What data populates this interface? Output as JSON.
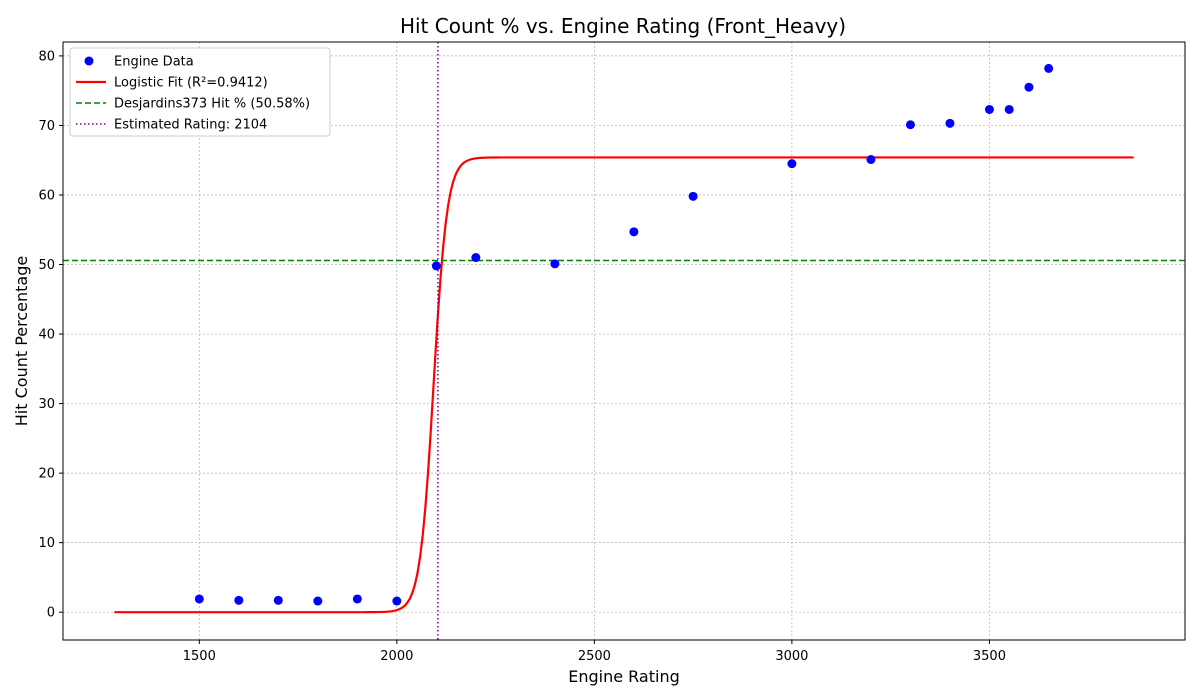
{
  "chart_data": {
    "type": "scatter",
    "title": "Hit Count % vs. Engine Rating (Front_Heavy)",
    "xlabel": "Engine Rating",
    "ylabel": "Hit Count Percentage",
    "xlim": [
      1155,
      3995
    ],
    "ylim": [
      -4,
      82
    ],
    "xticks": [
      1500,
      2000,
      2500,
      3000,
      3500
    ],
    "yticks": [
      0,
      10,
      20,
      30,
      40,
      50,
      60,
      70,
      80
    ],
    "grid": true,
    "legend_position": "top-left",
    "series": [
      {
        "name": "Engine Data",
        "kind": "scatter",
        "color": "#0000ff",
        "points": [
          [
            1500,
            1.9
          ],
          [
            1600,
            1.7
          ],
          [
            1700,
            1.7
          ],
          [
            1800,
            1.6
          ],
          [
            1900,
            1.9
          ],
          [
            2000,
            1.6
          ],
          [
            2100,
            49.8
          ],
          [
            2200,
            51.0
          ],
          [
            2400,
            50.1
          ],
          [
            2600,
            54.7
          ],
          [
            2750,
            59.8
          ],
          [
            3000,
            64.5
          ],
          [
            3200,
            65.1
          ],
          [
            3300,
            70.1
          ],
          [
            3400,
            70.3
          ],
          [
            3500,
            72.3
          ],
          [
            3550,
            72.3
          ],
          [
            3600,
            75.5
          ],
          [
            3650,
            78.2
          ]
        ]
      },
      {
        "name": "Logistic Fit (R²=0.9412)",
        "kind": "line",
        "color": "#ff0000",
        "model": "logistic",
        "L": 65.4,
        "x0": 2093,
        "k": 0.058,
        "x_range": [
          1285,
          3865
        ]
      },
      {
        "name": "Desjardins373 Hit % (50.58%)",
        "kind": "hline",
        "color": "#008000",
        "y": 50.58
      },
      {
        "name": "Estimated Rating: 2104",
        "kind": "vline",
        "color": "#800080",
        "x": 2104
      }
    ]
  }
}
